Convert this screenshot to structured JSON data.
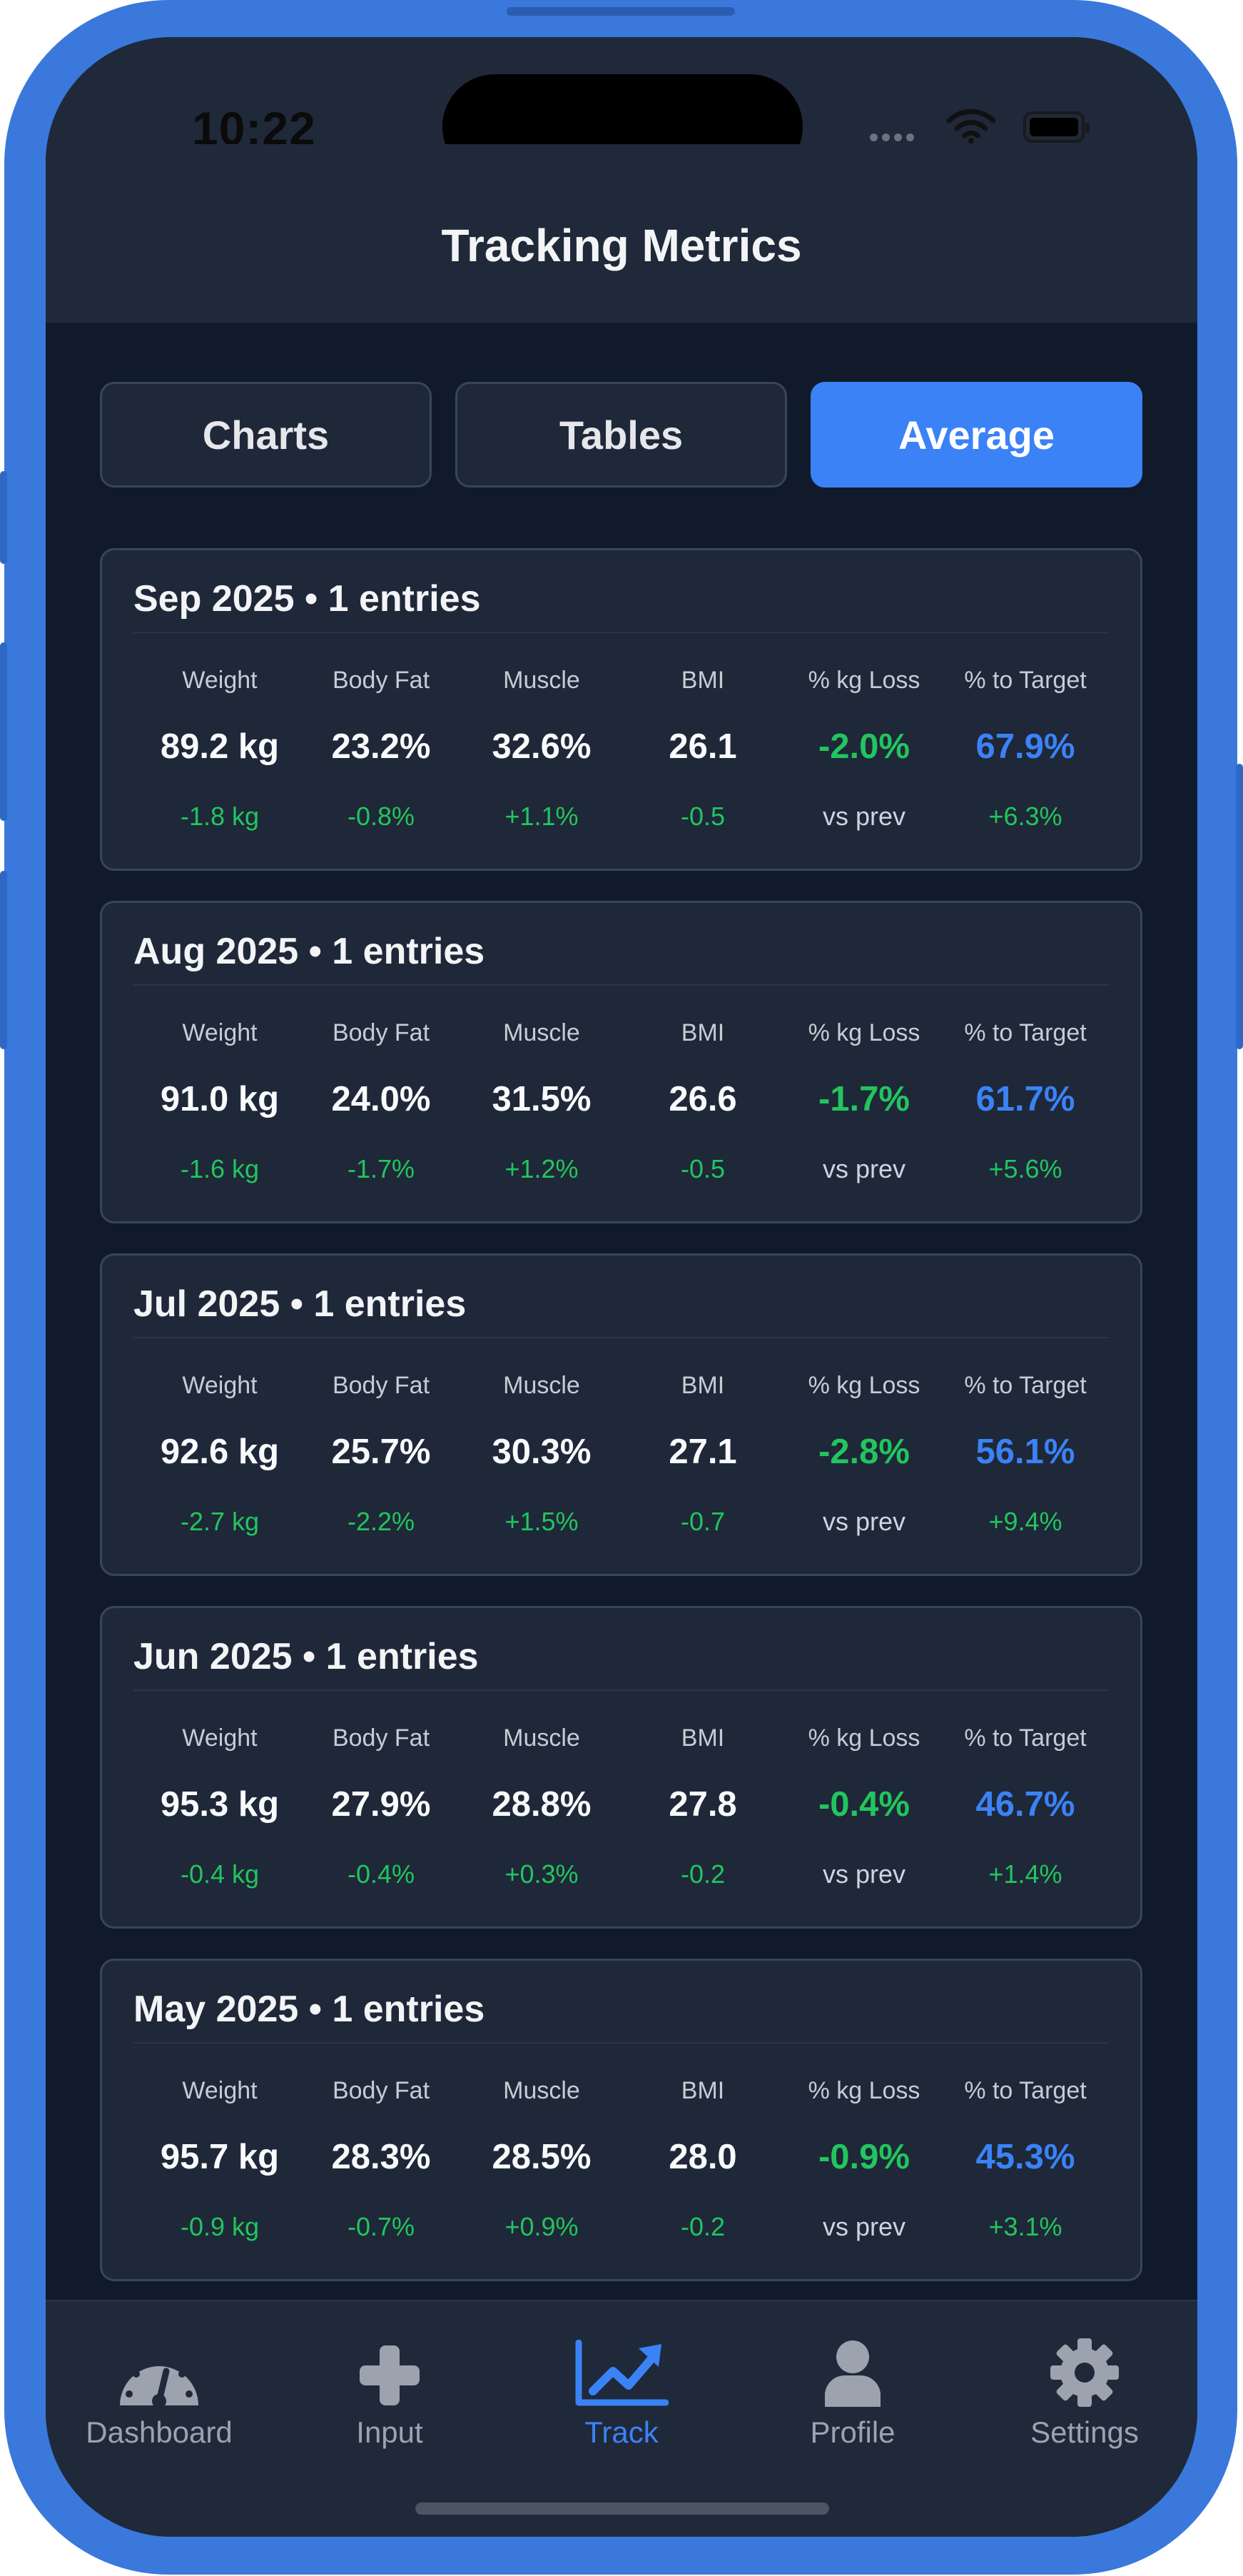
{
  "status_bar": {
    "time": "10:22"
  },
  "header": {
    "title": "Tracking Metrics"
  },
  "segments": [
    {
      "label": "Charts",
      "active": false
    },
    {
      "label": "Tables",
      "active": false
    },
    {
      "label": "Average",
      "active": true
    }
  ],
  "metric_labels": [
    "Weight",
    "Body Fat",
    "Muscle",
    "BMI",
    "% kg Loss",
    "% to Target"
  ],
  "months": [
    {
      "title": "Sep 2025 • 1 entries",
      "values": [
        "89.2 kg",
        "23.2%",
        "32.6%",
        "26.1",
        "-2.0%",
        "67.9%"
      ],
      "deltas": [
        "-1.8 kg",
        "-0.8%",
        "+1.1%",
        "-0.5",
        "vs prev",
        "+6.3%"
      ]
    },
    {
      "title": "Aug 2025 • 1 entries",
      "values": [
        "91.0 kg",
        "24.0%",
        "31.5%",
        "26.6",
        "-1.7%",
        "61.7%"
      ],
      "deltas": [
        "-1.6 kg",
        "-1.7%",
        "+1.2%",
        "-0.5",
        "vs prev",
        "+5.6%"
      ]
    },
    {
      "title": "Jul 2025 • 1 entries",
      "values": [
        "92.6 kg",
        "25.7%",
        "30.3%",
        "27.1",
        "-2.8%",
        "56.1%"
      ],
      "deltas": [
        "-2.7 kg",
        "-2.2%",
        "+1.5%",
        "-0.7",
        "vs prev",
        "+9.4%"
      ]
    },
    {
      "title": "Jun 2025 • 1 entries",
      "values": [
        "95.3 kg",
        "27.9%",
        "28.8%",
        "27.8",
        "-0.4%",
        "46.7%"
      ],
      "deltas": [
        "-0.4 kg",
        "-0.4%",
        "+0.3%",
        "-0.2",
        "vs prev",
        "+1.4%"
      ]
    },
    {
      "title": "May 2025 • 1 entries",
      "values": [
        "95.7 kg",
        "28.3%",
        "28.5%",
        "28.0",
        "-0.9%",
        "45.3%"
      ],
      "deltas": [
        "-0.9 kg",
        "-0.7%",
        "+0.9%",
        "-0.2",
        "vs prev",
        "+3.1%"
      ]
    }
  ],
  "tabbar": [
    {
      "label": "Dashboard",
      "icon": "gauge-icon",
      "active": false
    },
    {
      "label": "Input",
      "icon": "plus-icon",
      "active": false
    },
    {
      "label": "Track",
      "icon": "chart-line-icon",
      "active": true
    },
    {
      "label": "Profile",
      "icon": "user-icon",
      "active": false
    },
    {
      "label": "Settings",
      "icon": "gear-icon",
      "active": false
    }
  ],
  "colors": {
    "accent": "#3b82f6",
    "positive": "#22c55e",
    "frame": "#3a78dc",
    "background": "#111a2b",
    "card": "#1e2838"
  }
}
